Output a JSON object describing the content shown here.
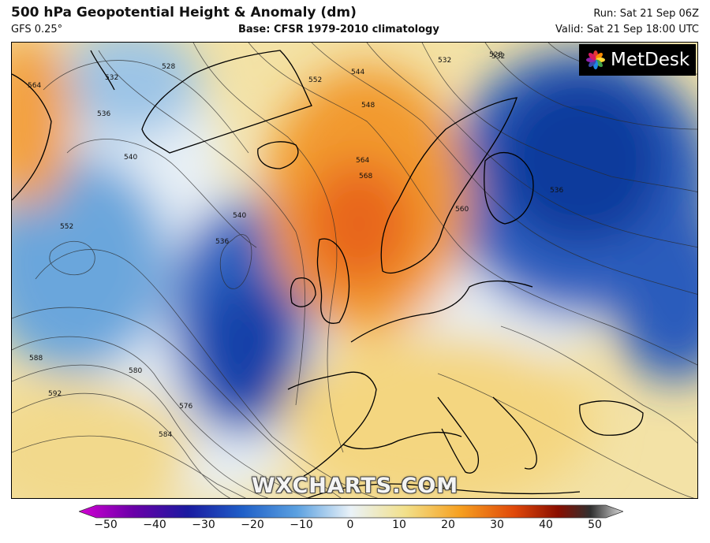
{
  "header": {
    "title": "500 hPa Geopotential Height & Anomaly (dm)",
    "model": "GFS 0.25°",
    "base": "Base: CFSR 1979-2010 climatology",
    "run": "Run: Sat 21 Sep 06Z",
    "valid": "Valid: Sat 21 Sep 18:00 UTC"
  },
  "logo": {
    "text": "MetDesk"
  },
  "watermark": "WXCHARTS.COM",
  "contour_labels": [
    "564",
    "532",
    "528",
    "536",
    "532",
    "540",
    "552",
    "544",
    "548",
    "532",
    "528",
    "564",
    "568",
    "552",
    "540",
    "536",
    "560",
    "536",
    "588",
    "592",
    "580",
    "576",
    "584"
  ],
  "colorbar": {
    "ticks": [
      "−50",
      "−40",
      "−30",
      "−20",
      "−10",
      "0",
      "10",
      "20",
      "30",
      "40",
      "50"
    ],
    "colors": [
      "#d400d4",
      "#6a00a8",
      "#1a1aa0",
      "#1f5fc8",
      "#5aa0e0",
      "#eaf2f8",
      "#f2e08a",
      "#f6a020",
      "#e0480a",
      "#8a0e00",
      "#303030",
      "#d9d9d9"
    ]
  }
}
